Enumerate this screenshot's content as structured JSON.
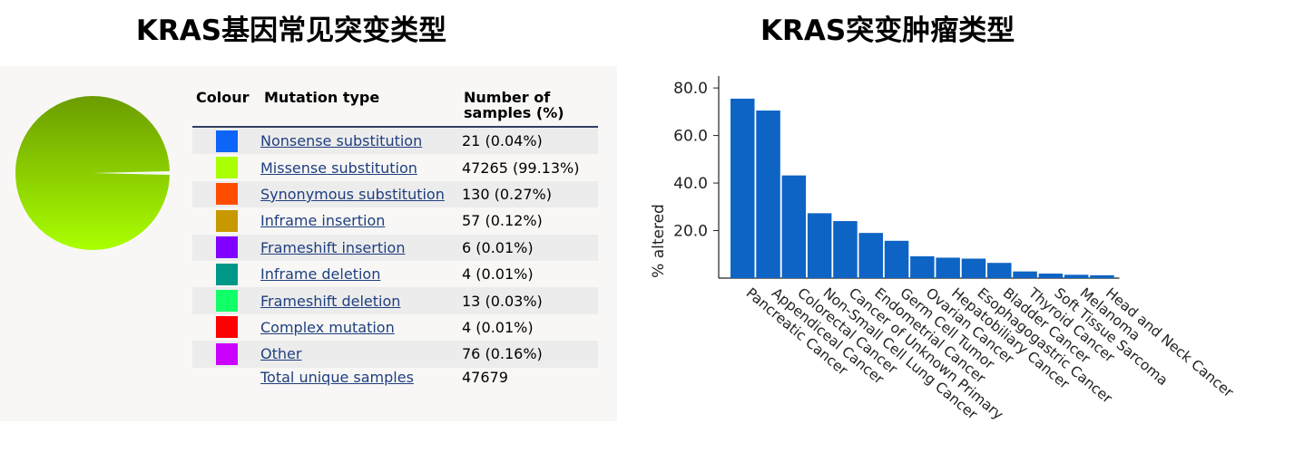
{
  "titles": {
    "left": "KRAS基因常见突变类型",
    "right": "KRAS突变肿瘤类型"
  },
  "mutation_table": {
    "headers": {
      "colour": "Colour",
      "mutation_type": "Mutation type",
      "samples_line1": "Number of",
      "samples_line2": "samples (%)"
    },
    "rows": [
      {
        "label": "Nonsense substitution",
        "count": "21 (0.04%)",
        "color": "#0d65f8",
        "percent": 0.04
      },
      {
        "label": "Missense substitution",
        "count": "47265 (99.13%)",
        "color": "#aaff00",
        "percent": 99.13
      },
      {
        "label": "Synonymous substitution",
        "count": "130 (0.27%)",
        "color": "#ff4d00",
        "percent": 0.27
      },
      {
        "label": "Inframe insertion",
        "count": "57 (0.12%)",
        "color": "#c79800",
        "percent": 0.12
      },
      {
        "label": "Frameshift insertion",
        "count": "6 (0.01%)",
        "color": "#7f00ff",
        "percent": 0.01
      },
      {
        "label": "Inframe deletion",
        "count": "4 (0.01%)",
        "color": "#009688",
        "percent": 0.01
      },
      {
        "label": "Frameshift deletion",
        "count": "13 (0.03%)",
        "color": "#11ff66",
        "percent": 0.03
      },
      {
        "label": "Complex mutation",
        "count": "4 (0.01%)",
        "color": "#ff0000",
        "percent": 0.01
      },
      {
        "label": "Other",
        "count": "76 (0.16%)",
        "color": "#cc00ff",
        "percent": 0.16
      }
    ],
    "total_label": "Total unique samples",
    "total_value": "47679"
  },
  "pie_colors": {
    "top": "#6b9c00",
    "bottom": "#aaff00"
  },
  "chart_data": {
    "type": "bar",
    "ylabel": "% altered",
    "ylim": [
      0,
      85
    ],
    "yticks": [
      "20.0",
      "40.0",
      "60.0",
      "80.0"
    ],
    "bar_color": "#0d64c4",
    "categories": [
      "Pancreatic Cancer",
      "Appendiceal Cancer",
      "Colorectal Cancer",
      "Non-Small Cell Lung Cancer",
      "Cancer of Unknown Primary",
      "Endometrial Cancer",
      "Germ Cell Tumor",
      "Ovarian Cancer",
      "Hepatobiliary Cancer",
      "Esophagogastric Cancer",
      "Bladder Cancer",
      "Thyroid Cancer",
      "Soft Tissue Sarcoma",
      "Melanoma",
      "Head and Neck Cancer"
    ],
    "values": [
      75.5,
      70.5,
      43.2,
      27.3,
      24.0,
      19.0,
      15.7,
      9.2,
      8.6,
      8.2,
      6.4,
      2.8,
      1.9,
      1.4,
      1.2
    ]
  }
}
